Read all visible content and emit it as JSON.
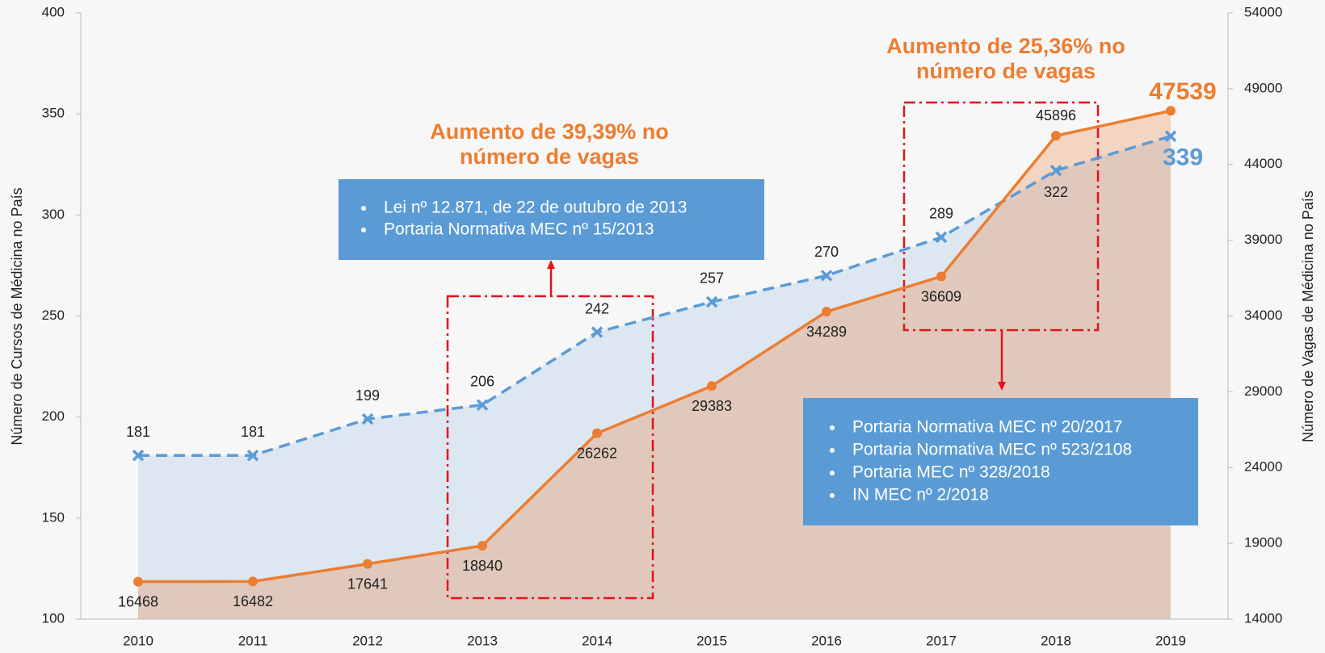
{
  "chart_data": {
    "type": "line",
    "categories": [
      "2010",
      "2011",
      "2012",
      "2013",
      "2014",
      "2015",
      "2016",
      "2017",
      "2018",
      "2019"
    ],
    "series": [
      {
        "name": "Número de Cursos de Médicina no País",
        "color": "#5b9bd5",
        "axis": "y",
        "marker": "x",
        "dashed": true,
        "values": [
          181,
          181,
          199,
          206,
          242,
          257,
          270,
          289,
          322,
          339
        ]
      },
      {
        "name": "Número de Vagas de Médicina no País",
        "color": "#ed7d31",
        "axis": "y2",
        "marker": "circle",
        "dashed": false,
        "values": [
          16468,
          16482,
          17641,
          18840,
          26262,
          29383,
          34289,
          36609,
          45896,
          47539
        ]
      }
    ],
    "ylabel": "Número de Cursos de Médicina no País",
    "y2label": "Número de Vagas de Médicina no País",
    "ylim": [
      100,
      400
    ],
    "yticks": [
      100,
      150,
      200,
      250,
      300,
      350,
      400
    ],
    "y2lim": [
      14000,
      54000
    ],
    "y2ticks": [
      14000,
      19000,
      24000,
      29000,
      34000,
      39000,
      44000,
      49000,
      54000
    ],
    "annotations": [
      {
        "lines": [
          "Aumento de 39,39% no",
          "número de vagas"
        ]
      },
      {
        "lines": [
          "Aumento de 25,36% no",
          "número de vagas"
        ]
      }
    ],
    "notes": [
      {
        "items": [
          "Lei nº 12.871, de 22 de outubro de 2013",
          "Portaria Normativa MEC nº 15/2013"
        ]
      },
      {
        "items": [
          "Portaria Normativa MEC nº 20/2017",
          "Portaria Normativa MEC nº 523/2108",
          "Portaria MEC nº 328/2018",
          "IN MEC nº 2/2018"
        ]
      }
    ]
  }
}
